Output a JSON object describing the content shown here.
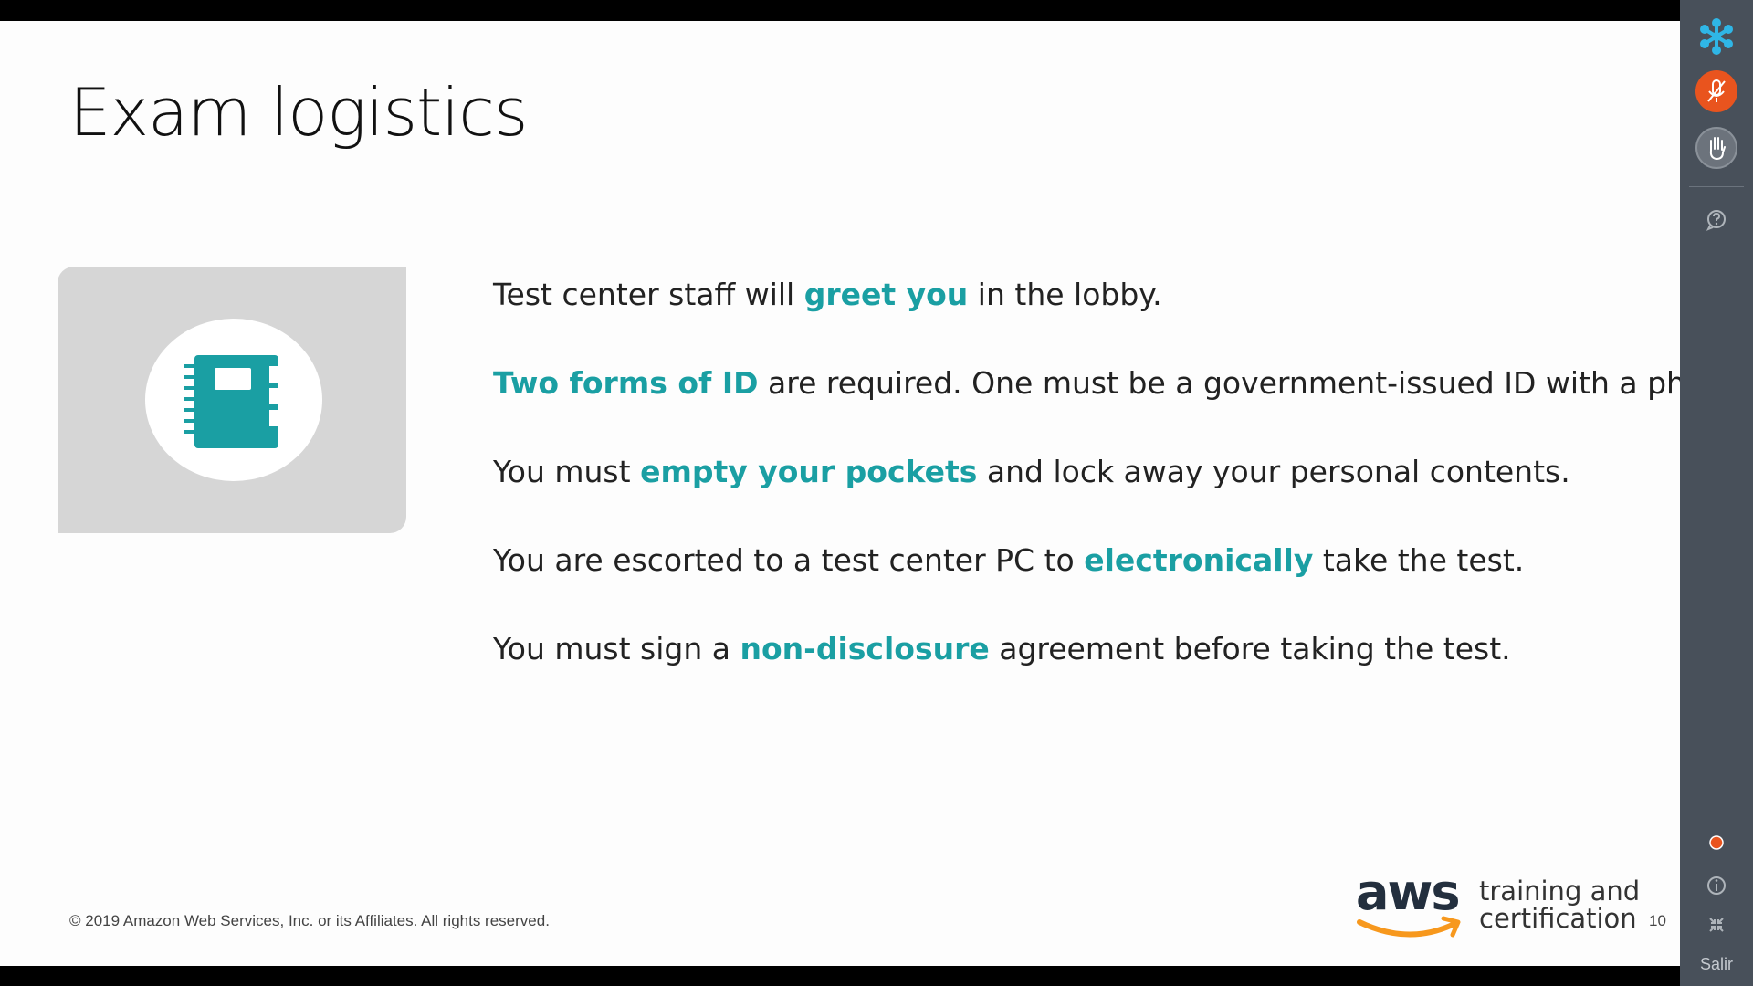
{
  "slide": {
    "title": "Exam logistics",
    "bullets": [
      {
        "before": "Test center staff will ",
        "highlight": "greet you",
        "after": " in the lobby."
      },
      {
        "before": "",
        "highlight": "Two forms of ID",
        "after": " are required. One must be a government-issued ID with a photo."
      },
      {
        "before": "You must ",
        "highlight": "empty your pockets",
        "after": " and lock away your personal contents."
      },
      {
        "before": "You are escorted to a test center PC to ",
        "highlight": "electronically",
        "after": " take the test."
      },
      {
        "before": "You must sign a ",
        "highlight": "non-disclosure",
        "after": " agreement before taking the test."
      }
    ],
    "copyright": "© 2019 Amazon Web Services, Inc. or its Affiliates. All rights reserved.",
    "page_number": "10",
    "logo": {
      "word": "aws",
      "tagline_line1": "training and",
      "tagline_line2": "certification"
    },
    "illustration_icon": "notebook-icon",
    "highlight_color": "#1a9fa3"
  },
  "sidebar": {
    "icons": [
      "snowflake-logo-icon",
      "microphone-icon",
      "raise-hand-icon",
      "help-icon",
      "status-dot-icon",
      "info-icon",
      "collapse-icon"
    ],
    "mic_color": "#e9541e",
    "status_color": "#e9541e",
    "exit_label": "Salir"
  }
}
